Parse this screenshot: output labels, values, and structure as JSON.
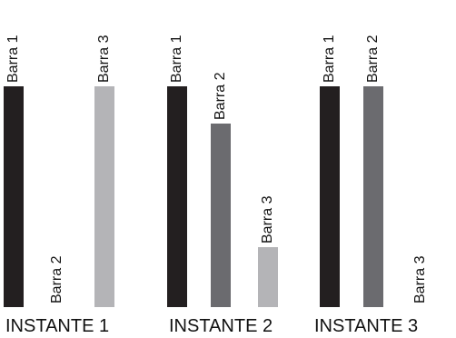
{
  "figure": {
    "max_value": 1.0,
    "colors": {
      "Barra 1": "#231f20",
      "Barra 2": "#6b6b6f",
      "Barra 3": "#b4b4b7"
    },
    "panels": [
      {
        "caption": "INSTANTE 1",
        "bars": [
          {
            "label": "Barra 1",
            "value": 1.0
          },
          {
            "label": "Barra 2",
            "value": 0.0
          },
          {
            "label": "Barra 3",
            "value": 1.0
          }
        ]
      },
      {
        "caption": "INSTANTE 2",
        "bars": [
          {
            "label": "Barra 1",
            "value": 1.0
          },
          {
            "label": "Barra 2",
            "value": 0.83
          },
          {
            "label": "Barra 3",
            "value": 0.27
          }
        ]
      },
      {
        "caption": "INSTANTE 3",
        "bars": [
          {
            "label": "Barra 1",
            "value": 1.0
          },
          {
            "label": "Barra 2",
            "value": 1.0
          },
          {
            "label": "Barra 3",
            "value": 0.0
          }
        ]
      }
    ]
  }
}
